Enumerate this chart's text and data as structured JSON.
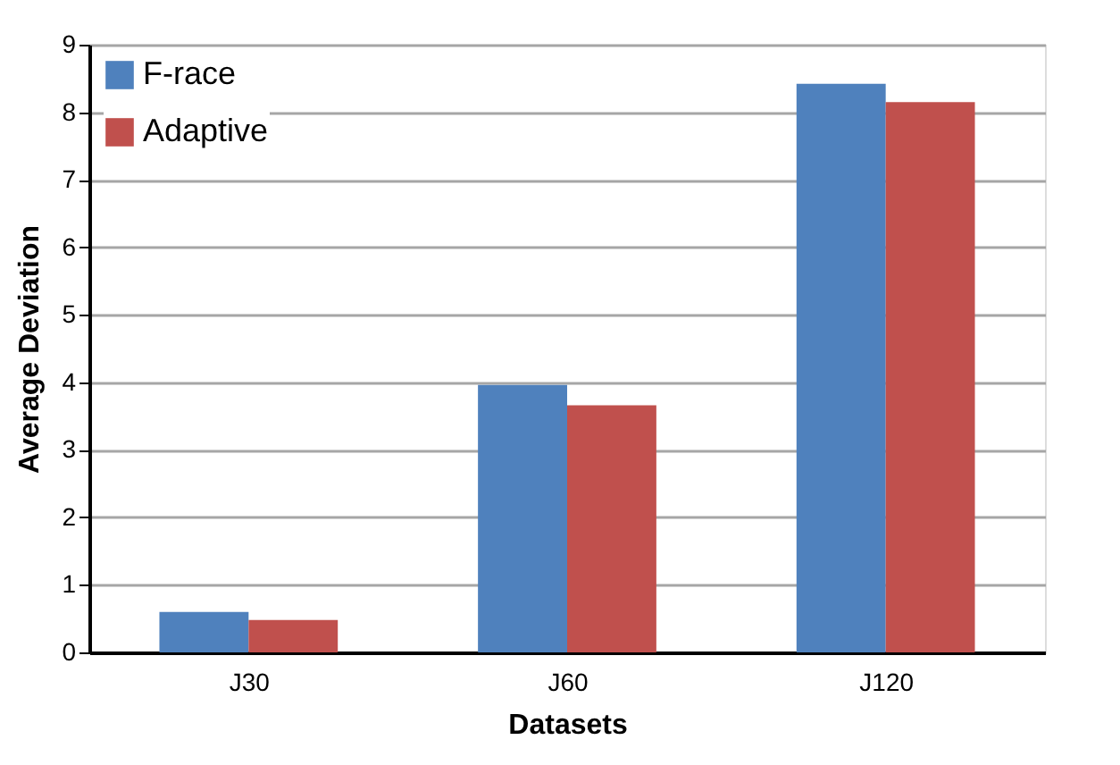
{
  "chart_data": {
    "type": "bar",
    "xlabel": "Datasets",
    "ylabel": "Average Deviation",
    "categories": [
      "J30",
      "J60",
      "J120"
    ],
    "series": [
      {
        "name": "F-race",
        "color": "#4f81bd",
        "values": [
          0.6,
          3.96,
          8.42
        ]
      },
      {
        "name": "Adaptive",
        "color": "#c0504d",
        "values": [
          0.48,
          3.66,
          8.15
        ]
      }
    ],
    "ylim": [
      0,
      9
    ],
    "yticks": [
      0,
      1,
      2,
      3,
      4,
      5,
      6,
      7,
      8,
      9
    ],
    "grid": "y",
    "legend": "top left"
  }
}
